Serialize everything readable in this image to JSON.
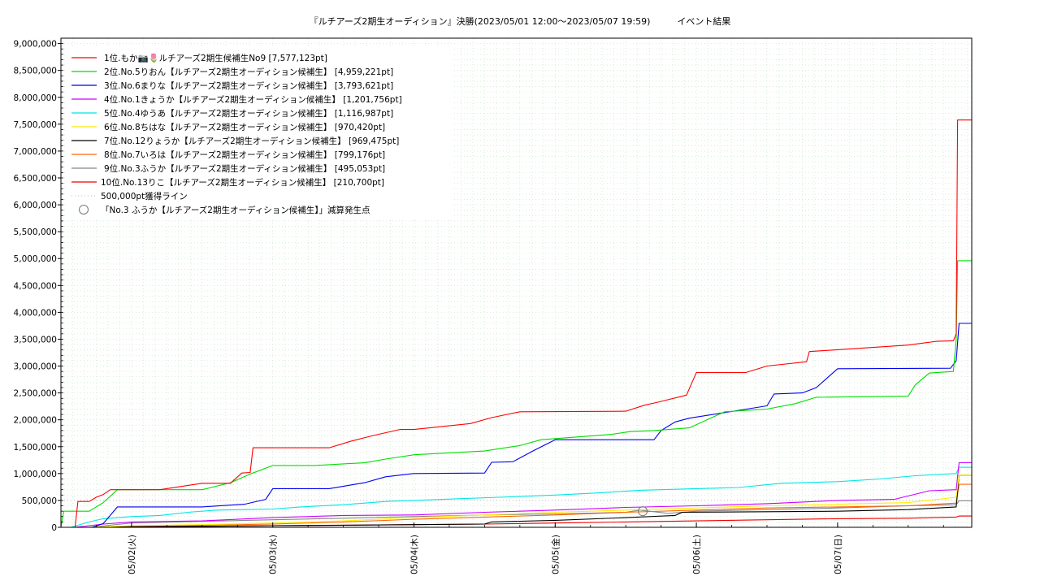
{
  "chart_data": {
    "type": "line",
    "title": "『ルチアーズ2期生オーディション』決勝(2023/05/01 12:00～2023/05/07 19:59)　　　イベント結果",
    "xlabel": "",
    "ylabel": "",
    "x_unit": "days since 2023/05/01 00:00",
    "xlim": [
      0.5,
      6.95
    ],
    "ylim": [
      0,
      9100000
    ],
    "grid": true,
    "legend_position": "top-left",
    "x_ticks": [
      {
        "x": 1,
        "label": "05/02(火)"
      },
      {
        "x": 2,
        "label": "05/03(水)"
      },
      {
        "x": 3,
        "label": "05/04(木)"
      },
      {
        "x": 4,
        "label": "05/05(金)"
      },
      {
        "x": 5,
        "label": "05/06(土)"
      },
      {
        "x": 6,
        "label": "05/07(日)"
      }
    ],
    "y_ticks": [
      {
        "y": 0,
        "label": "0"
      },
      {
        "y": 500000,
        "label": "500,000"
      },
      {
        "y": 1000000,
        "label": "1,000,000"
      },
      {
        "y": 1500000,
        "label": "1,500,000"
      },
      {
        "y": 2000000,
        "label": "2,000,000"
      },
      {
        "y": 2500000,
        "label": "2,500,000"
      },
      {
        "y": 3000000,
        "label": "3,000,000"
      },
      {
        "y": 3500000,
        "label": "3,500,000"
      },
      {
        "y": 4000000,
        "label": "4,000,000"
      },
      {
        "y": 4500000,
        "label": "4,500,000"
      },
      {
        "y": 5000000,
        "label": "5,000,000"
      },
      {
        "y": 5500000,
        "label": "5,500,000"
      },
      {
        "y": 6000000,
        "label": "6,000,000"
      },
      {
        "y": 6500000,
        "label": "6,500,000"
      },
      {
        "y": 7000000,
        "label": "7,000,000"
      },
      {
        "y": 7500000,
        "label": "7,500,000"
      },
      {
        "y": 8000000,
        "label": "8,000,000"
      },
      {
        "y": 8500000,
        "label": "8,500,000"
      },
      {
        "y": 9000000,
        "label": "9,000,000"
      }
    ],
    "series": [
      {
        "name": "1位.もか📷🌷ルチアーズ2期生候補生No9 [7,577,123pt]",
        "color": "#ff0000",
        "x": [
          0.5,
          0.6,
          0.62,
          0.7,
          0.75,
          0.8,
          0.85,
          0.9,
          1.2,
          1.5,
          1.7,
          1.78,
          1.84,
          1.86,
          2.4,
          2.55,
          2.7,
          2.9,
          3.0,
          3.4,
          3.55,
          3.75,
          4.5,
          4.63,
          4.73,
          4.93,
          5.0,
          5.35,
          5.5,
          5.78,
          5.8,
          6.5,
          6.7,
          6.82,
          6.84,
          6.85,
          6.95
        ],
        "y": [
          0,
          0,
          480000,
          480000,
          560000,
          610000,
          700000,
          700000,
          700000,
          820000,
          820000,
          1010000,
          1020000,
          1480000,
          1480000,
          1600000,
          1700000,
          1820000,
          1820000,
          1930000,
          2040000,
          2150000,
          2160000,
          2270000,
          2330000,
          2460000,
          2880000,
          2880000,
          3000000,
          3080000,
          3270000,
          3390000,
          3460000,
          3470000,
          3600000,
          7577123,
          7577123
        ]
      },
      {
        "name": "2位.No.5りおん【ルチアーズ2期生オーディション候補生】 [4,959,221pt]",
        "color": "#00dd00",
        "x": [
          0.5,
          0.52,
          0.6,
          0.7,
          0.8,
          0.9,
          1.3,
          1.5,
          1.7,
          1.85,
          2.0,
          2.3,
          2.5,
          2.65,
          2.8,
          3.0,
          3.5,
          3.75,
          3.9,
          4.4,
          4.53,
          4.7,
          4.95,
          5.2,
          5.5,
          5.7,
          5.85,
          6.5,
          6.55,
          6.65,
          6.82,
          6.84,
          6.85,
          6.95
        ],
        "y": [
          0,
          300000,
          300000,
          300000,
          460000,
          700000,
          700000,
          700000,
          830000,
          1000000,
          1150000,
          1150000,
          1180000,
          1200000,
          1270000,
          1350000,
          1420000,
          1520000,
          1630000,
          1730000,
          1780000,
          1800000,
          1850000,
          2150000,
          2200000,
          2300000,
          2420000,
          2440000,
          2650000,
          2870000,
          2900000,
          3500000,
          4959221,
          4959221
        ]
      },
      {
        "name": "3位.No.6まりな【ルチアーズ2期生オーディション候補生】 [3,793,621pt]",
        "color": "#0000ee",
        "x": [
          0.5,
          0.72,
          0.8,
          0.9,
          1.2,
          1.5,
          1.8,
          1.95,
          2.0,
          2.4,
          2.65,
          2.8,
          3.0,
          3.5,
          3.55,
          3.7,
          3.85,
          4.0,
          4.7,
          4.75,
          4.85,
          4.95,
          5.5,
          5.55,
          5.75,
          5.85,
          6.0,
          6.8,
          6.84,
          6.86,
          6.95
        ],
        "y": [
          0,
          0,
          70000,
          380000,
          380000,
          380000,
          430000,
          520000,
          720000,
          720000,
          830000,
          940000,
          1000000,
          1010000,
          1210000,
          1220000,
          1430000,
          1630000,
          1630000,
          1800000,
          1960000,
          2030000,
          2260000,
          2480000,
          2500000,
          2600000,
          2950000,
          2960000,
          3100000,
          3793621,
          3793621
        ]
      },
      {
        "name": "4位.No.1きょうか【ルチアーズ2期生オーディション候補生】 [1,201,756pt]",
        "color": "#cc00ff",
        "x": [
          0.5,
          0.6,
          0.8,
          1.0,
          1.5,
          2.0,
          2.5,
          3.0,
          3.5,
          4.0,
          4.5,
          5.0,
          5.5,
          6.0,
          6.4,
          6.65,
          6.84,
          6.86,
          6.95
        ],
        "y": [
          0,
          0,
          60000,
          100000,
          120000,
          180000,
          220000,
          230000,
          280000,
          320000,
          370000,
          400000,
          440000,
          500000,
          520000,
          680000,
          700000,
          1201756,
          1201756
        ]
      },
      {
        "name": "5位.No.4ゆうあ【ルチアーズ2期生オーディション候補生】 [1,116,987pt]",
        "color": "#00e5e5",
        "x": [
          0.5,
          0.57,
          0.7,
          0.8,
          1.0,
          1.2,
          1.4,
          1.6,
          1.8,
          2.0,
          2.2,
          2.5,
          2.8,
          3.0,
          3.3,
          3.6,
          4.0,
          4.3,
          4.6,
          5.0,
          5.3,
          5.6,
          6.0,
          6.3,
          6.55,
          6.84,
          6.86,
          6.95
        ],
        "y": [
          0,
          0,
          100000,
          160000,
          200000,
          220000,
          280000,
          320000,
          330000,
          340000,
          380000,
          420000,
          480000,
          500000,
          530000,
          560000,
          600000,
          640000,
          690000,
          720000,
          740000,
          820000,
          850000,
          900000,
          960000,
          1000000,
          1116987,
          1116987
        ]
      },
      {
        "name": "6位.No.8ちはな【ルチアーズ2期生オーディション候補生】 [970,420pt]",
        "color": "#ffee00",
        "x": [
          0.5,
          0.7,
          1.0,
          1.5,
          2.0,
          2.5,
          3.0,
          3.5,
          4.0,
          4.5,
          5.0,
          5.5,
          6.0,
          6.5,
          6.84,
          6.86,
          6.95
        ],
        "y": [
          0,
          0,
          30000,
          50000,
          80000,
          120000,
          180000,
          230000,
          280000,
          320000,
          360000,
          400000,
          430000,
          460000,
          560000,
          970420,
          970420
        ]
      },
      {
        "name": "7位.No.12りょうか【ルチアーズ2期生オーディション候補生】 [969,475pt]",
        "color": "#000000",
        "x": [
          0.5,
          0.75,
          1.0,
          1.5,
          2.0,
          2.5,
          3.0,
          3.5,
          3.55,
          4.0,
          4.5,
          4.85,
          4.9,
          5.5,
          6.0,
          6.5,
          6.84,
          6.86,
          6.95
        ],
        "y": [
          0,
          0,
          10000,
          20000,
          30000,
          40000,
          50000,
          60000,
          100000,
          130000,
          180000,
          220000,
          280000,
          290000,
          300000,
          330000,
          380000,
          969475,
          969475
        ]
      },
      {
        "name": "8位.No.7いろは【ルチアーズ2期生オーディション候補生】 [799,176pt]",
        "color": "#ff6600",
        "x": [
          0.5,
          0.7,
          1.0,
          1.5,
          2.0,
          2.5,
          3.0,
          3.5,
          4.0,
          4.5,
          5.0,
          5.5,
          6.0,
          6.5,
          6.84,
          6.86,
          6.95
        ],
        "y": [
          0,
          0,
          20000,
          40000,
          60000,
          100000,
          150000,
          190000,
          230000,
          280000,
          320000,
          360000,
          380000,
          400000,
          450000,
          799176,
          799176
        ]
      },
      {
        "name": "9位.No.3ふうか【ルチアーズ2期生オーディション候補生】 [495,053pt]",
        "color": "#888888",
        "x": [
          0.5,
          0.7,
          1.0,
          1.5,
          2.0,
          2.5,
          3.0,
          3.5,
          4.0,
          4.5,
          4.6,
          4.8,
          5.0,
          5.5,
          6.0,
          6.5,
          6.84,
          6.86,
          6.95
        ],
        "y": [
          0,
          0,
          80000,
          110000,
          140000,
          170000,
          200000,
          230000,
          250000,
          280000,
          320000,
          260000,
          300000,
          330000,
          360000,
          400000,
          420000,
          495053,
          495053
        ]
      },
      {
        "name": "10位.No.13りこ【ルチアーズ2期生オーディション候補生】 [210,700pt]",
        "color": "#ee0000",
        "x": [
          0.5,
          0.7,
          1.0,
          1.5,
          2.0,
          2.5,
          3.0,
          3.5,
          4.0,
          4.5,
          5.0,
          5.5,
          6.0,
          6.5,
          6.84,
          6.86,
          6.95
        ],
        "y": [
          0,
          0,
          10000,
          20000,
          30000,
          40000,
          50000,
          60000,
          80000,
          100000,
          120000,
          140000,
          160000,
          170000,
          190000,
          210700,
          210700
        ]
      }
    ],
    "reference_line": {
      "name": "500,000pt獲得ライン",
      "y": 500000,
      "color": "#bbbbbb"
    },
    "markers": [
      {
        "name": "「No.3 ふうか【ルチアーズ2期生オーディション候補生】」減算発生点",
        "x": 4.62,
        "y": 300000
      }
    ]
  }
}
